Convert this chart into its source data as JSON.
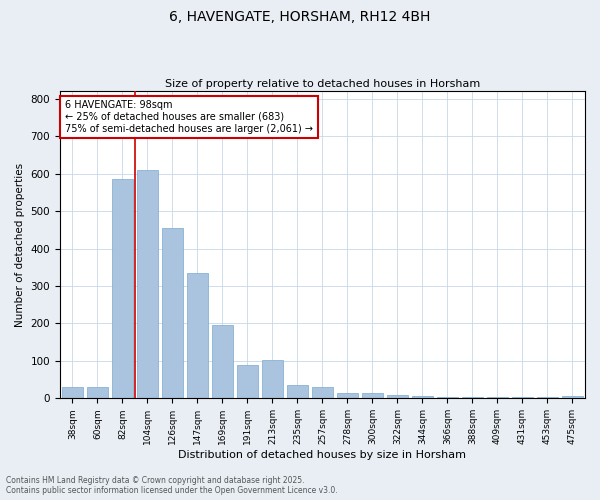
{
  "title1": "6, HAVENGATE, HORSHAM, RH12 4BH",
  "title2": "Size of property relative to detached houses in Horsham",
  "xlabel": "Distribution of detached houses by size in Horsham",
  "ylabel": "Number of detached properties",
  "categories": [
    "38sqm",
    "60sqm",
    "82sqm",
    "104sqm",
    "126sqm",
    "147sqm",
    "169sqm",
    "191sqm",
    "213sqm",
    "235sqm",
    "257sqm",
    "278sqm",
    "300sqm",
    "322sqm",
    "344sqm",
    "366sqm",
    "388sqm",
    "409sqm",
    "431sqm",
    "453sqm",
    "475sqm"
  ],
  "values": [
    30,
    30,
    585,
    610,
    455,
    335,
    195,
    90,
    103,
    35,
    30,
    13,
    13,
    8,
    5,
    3,
    3,
    3,
    3,
    3,
    5
  ],
  "bar_color": "#aac4e0",
  "bar_edge_color": "#7aaace",
  "vline_x_index": 2.5,
  "vline_color": "#cc0000",
  "annotation_text": "6 HAVENGATE: 98sqm\n← 25% of detached houses are smaller (683)\n75% of semi-detached houses are larger (2,061) →",
  "annotation_box_color": "#cc0000",
  "ylim": [
    0,
    820
  ],
  "yticks": [
    0,
    100,
    200,
    300,
    400,
    500,
    600,
    700,
    800
  ],
  "footer1": "Contains HM Land Registry data © Crown copyright and database right 2025.",
  "footer2": "Contains public sector information licensed under the Open Government Licence v3.0.",
  "bg_color": "#e8eef4",
  "plot_bg_color": "#ffffff"
}
